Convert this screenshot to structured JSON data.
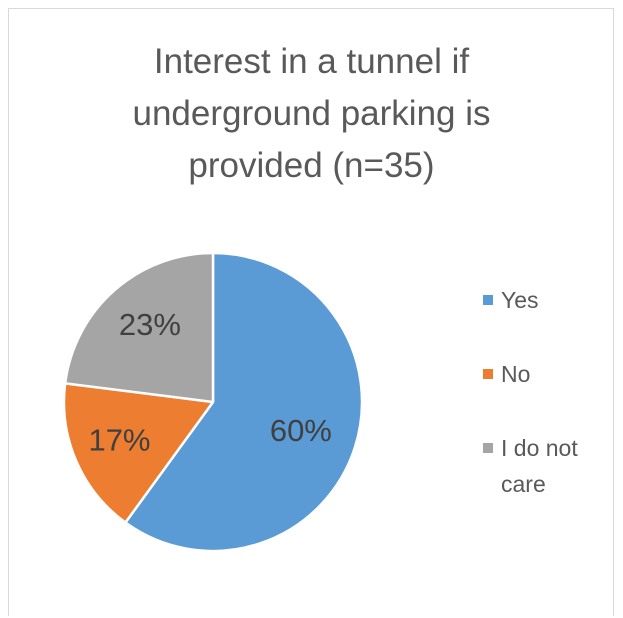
{
  "chart_data": {
    "type": "pie",
    "title_lines": [
      "Interest in a tunnel if",
      "underground parking is",
      "provided (n=35)"
    ],
    "slices": [
      {
        "label": "Yes",
        "value": 60,
        "display": "60%",
        "color": "#5b9bd5"
      },
      {
        "label": "No",
        "value": 17,
        "display": "17%",
        "color": "#ed7d31"
      },
      {
        "label": "I do not care",
        "value": 23,
        "display": "23%",
        "color": "#a5a5a5"
      }
    ],
    "legend_position": "right",
    "legend_lines": {
      "yes": [
        "Yes"
      ],
      "no": [
        "No"
      ],
      "care": [
        "I do not",
        "care"
      ]
    }
  }
}
